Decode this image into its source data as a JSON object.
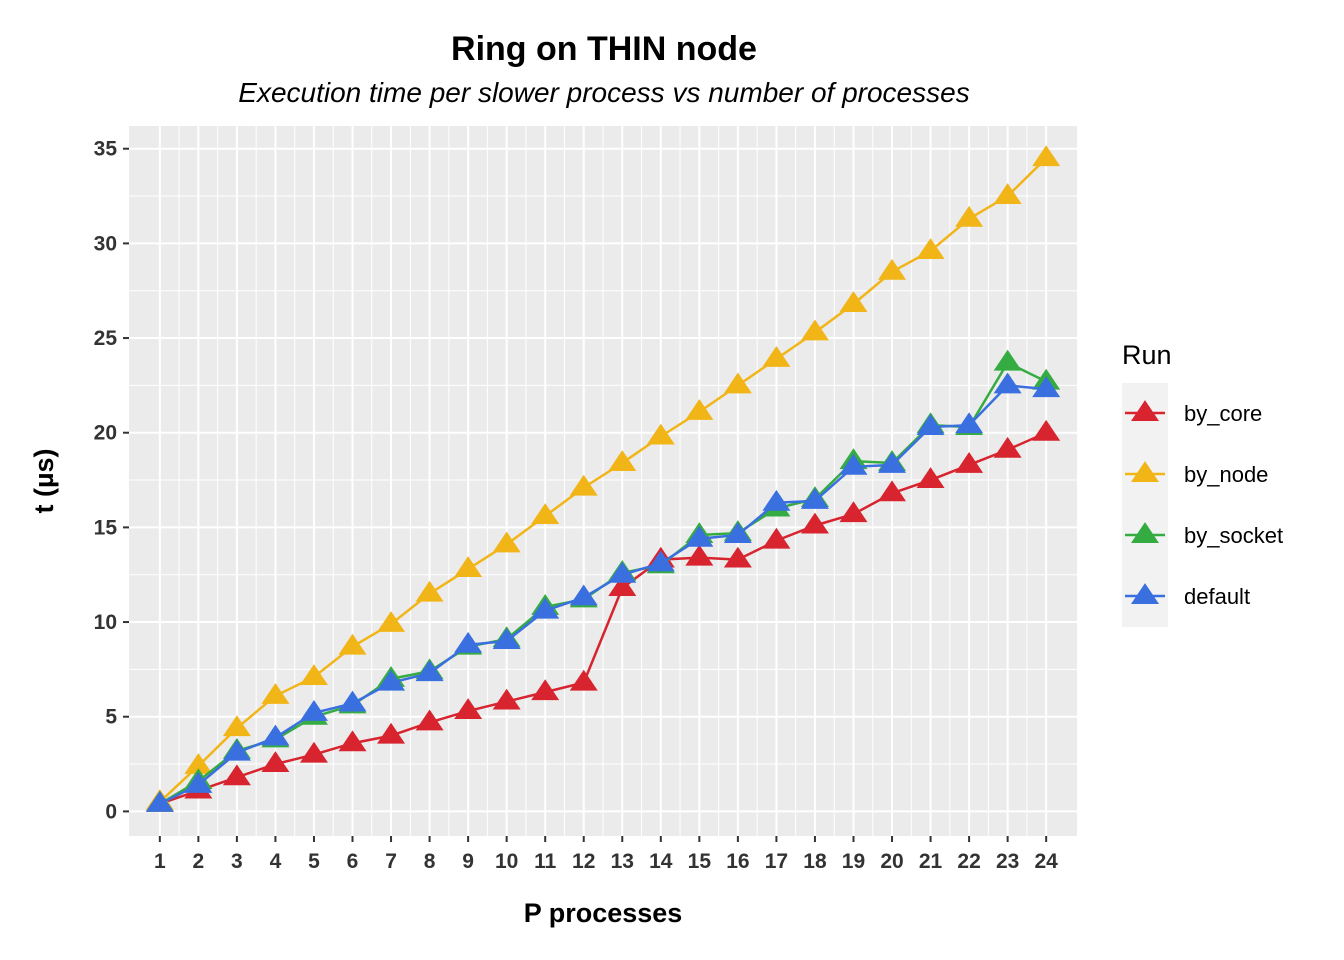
{
  "chart_data": {
    "type": "line",
    "title": "Ring on THIN node",
    "subtitle": "Execution time per slower process vs number of processes",
    "xlabel": "P processes",
    "ylabel": "t (µs)",
    "x": [
      1,
      2,
      3,
      4,
      5,
      6,
      7,
      8,
      9,
      10,
      11,
      12,
      13,
      14,
      15,
      16,
      17,
      18,
      19,
      20,
      21,
      22,
      23,
      24
    ],
    "xlim": [
      0.2,
      24.8
    ],
    "ylim": [
      -1.3,
      36.2
    ],
    "y_ticks": [
      0,
      5,
      10,
      15,
      20,
      25,
      30,
      35
    ],
    "grid": true,
    "legend_title": "Run",
    "legend_position": "right",
    "series": [
      {
        "name": "by_core",
        "color": "#D7242F",
        "values": [
          0.4,
          1.1,
          1.8,
          2.5,
          3.0,
          3.6,
          4.0,
          4.7,
          5.3,
          5.8,
          6.3,
          6.8,
          11.8,
          13.3,
          13.4,
          13.3,
          14.3,
          15.1,
          15.7,
          16.8,
          17.5,
          18.3,
          19.1,
          20.0
        ]
      },
      {
        "name": "by_node",
        "color": "#F2B518",
        "values": [
          0.5,
          2.4,
          4.4,
          6.1,
          7.1,
          8.7,
          9.9,
          11.5,
          12.8,
          14.1,
          15.6,
          17.1,
          18.4,
          19.8,
          21.1,
          22.5,
          23.9,
          25.3,
          26.8,
          28.5,
          29.6,
          31.3,
          32.5,
          34.5
        ]
      },
      {
        "name": "by_socket",
        "color": "#35AC42",
        "values": [
          0.4,
          1.6,
          3.2,
          3.8,
          5.0,
          5.6,
          7.0,
          7.4,
          8.7,
          9.1,
          10.8,
          11.2,
          12.6,
          13.0,
          14.6,
          14.7,
          16.0,
          16.5,
          18.5,
          18.4,
          20.4,
          20.3,
          23.7,
          22.7
        ]
      },
      {
        "name": "default",
        "color": "#3A6FE0",
        "values": [
          0.4,
          1.4,
          3.1,
          3.9,
          5.2,
          5.7,
          6.8,
          7.3,
          8.8,
          9.0,
          10.6,
          11.3,
          12.5,
          13.1,
          14.4,
          14.6,
          16.3,
          16.4,
          18.2,
          18.3,
          20.3,
          20.4,
          22.5,
          22.3
        ]
      }
    ]
  }
}
